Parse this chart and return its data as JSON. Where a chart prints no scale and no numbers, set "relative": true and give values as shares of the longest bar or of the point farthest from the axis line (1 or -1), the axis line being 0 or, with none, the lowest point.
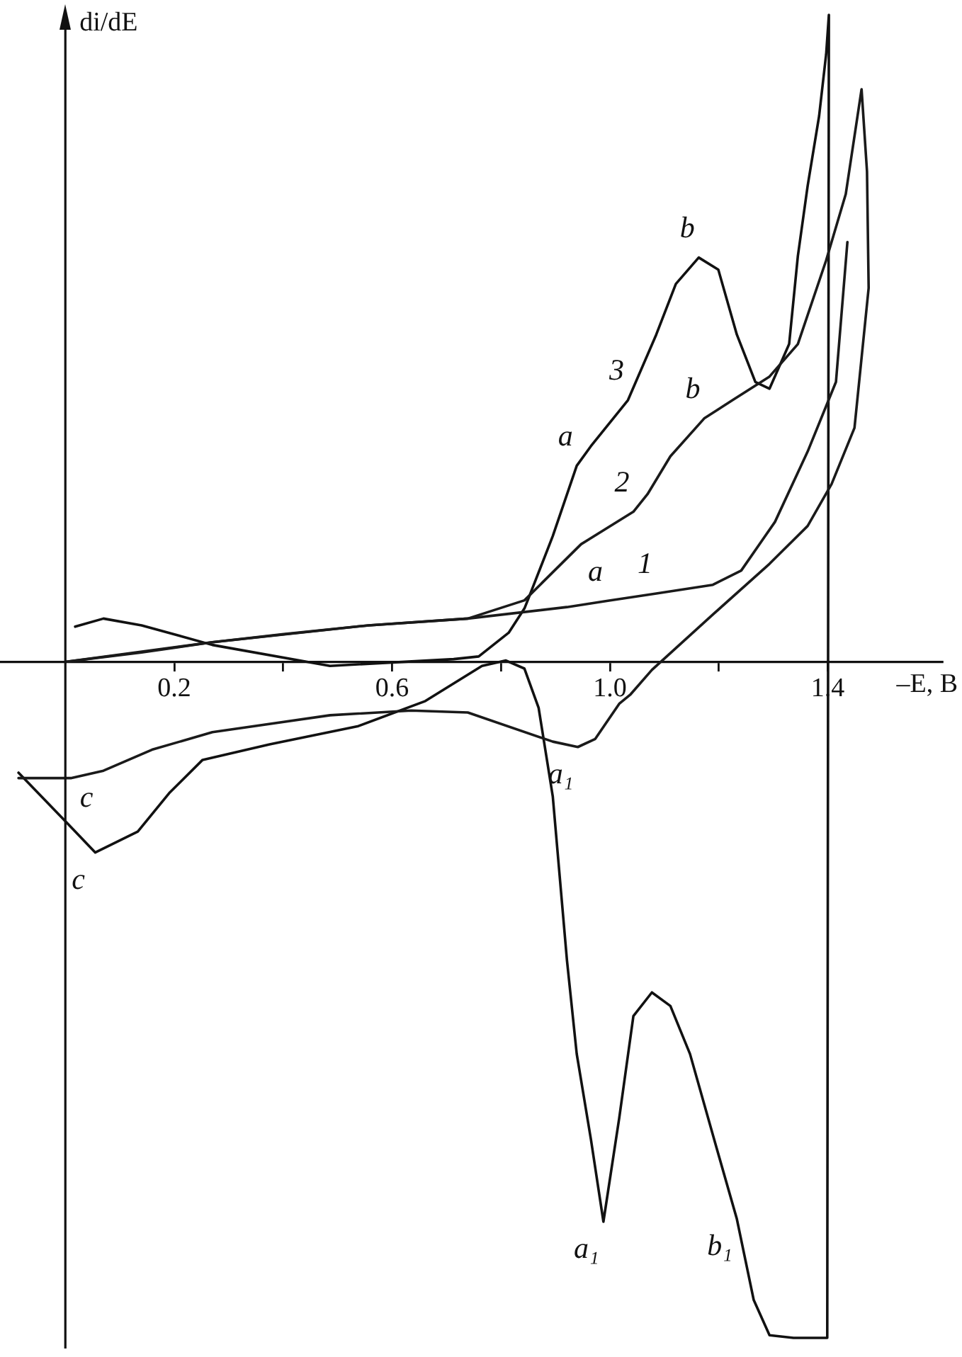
{
  "chart_data": {
    "type": "line",
    "relative": true,
    "xlabel": "–E, B",
    "ylabel": "di/dE",
    "xlim": [
      -0.12,
      1.61
    ],
    "xticks": [
      {
        "value": 0.2,
        "label": "0.2"
      },
      {
        "value": 0.4,
        "label": null
      },
      {
        "value": 0.6,
        "label": "0.6"
      },
      {
        "value": 0.8,
        "label": null
      },
      {
        "value": 1.0,
        "label": "1.0"
      },
      {
        "value": 1.2,
        "label": null
      },
      {
        "value": 1.4,
        "label": "1.4"
      }
    ],
    "tick_labels": "x",
    "grid": false,
    "legend": false,
    "marker": "none",
    "line_style": "solid",
    "series": [
      {
        "color": "#1a1a1a",
        "x": [
          0.0,
          0.14,
          0.27,
          0.401,
          0.557,
          0.739,
          0.921,
          0.994,
          1.085,
          1.189,
          1.241,
          1.303,
          1.363,
          1.415,
          1.436
        ],
        "values": [
          0,
          0.014,
          0.029,
          0.041,
          0.054,
          0.064,
          0.081,
          0.09,
          0.101,
          0.114,
          0.135,
          0.207,
          0.311,
          0.414,
          0.621
        ]
      },
      {
        "color": "#1a1a1a",
        "x": [
          0.0,
          0.27,
          0.557,
          0.739,
          0.843,
          0.947,
          1.043,
          1.069,
          1.111,
          1.173,
          1.225,
          1.293,
          1.345,
          1.397,
          1.433,
          1.462,
          1.472,
          1.475,
          1.449,
          1.407,
          1.363,
          1.293,
          1.189,
          1.077,
          1.038,
          1.017,
          0.973,
          0.941,
          0.895,
          0.739,
          0.635,
          0.486,
          0.27,
          0.159,
          0.07,
          0.01,
          -0.086
        ],
        "values": [
          0,
          0.029,
          0.054,
          0.064,
          0.091,
          0.174,
          0.222,
          0.248,
          0.304,
          0.36,
          0.387,
          0.422,
          0.47,
          0.594,
          0.692,
          0.847,
          0.725,
          0.553,
          0.346,
          0.263,
          0.201,
          0.145,
          0.07,
          -0.012,
          -0.048,
          -0.062,
          -0.114,
          -0.126,
          -0.118,
          -0.075,
          -0.072,
          -0.079,
          -0.104,
          -0.13,
          -0.161,
          -0.172,
          -0.172
        ]
      },
      {
        "color": "#111111",
        "x": [
          0.018,
          0.07,
          0.14,
          0.27,
          0.486,
          0.713,
          0.759,
          0.814,
          0.843,
          0.85,
          0.895,
          0.939,
          0.965,
          1.033,
          1.085,
          1.121,
          1.163,
          1.199,
          1.233,
          1.267,
          1.293,
          1.329,
          1.345,
          1.363,
          1.384,
          1.397,
          1.402,
          1.399,
          1.337,
          1.293,
          1.264,
          1.233,
          1.194,
          1.147,
          1.111,
          1.077,
          1.043,
          1.017,
          0.988,
          0.965,
          0.939,
          0.921,
          0.895,
          0.869,
          0.843,
          0.809,
          0.765,
          0.661,
          0.538,
          0.375,
          0.252,
          0.192,
          0.133,
          0.055,
          0.005,
          -0.086
        ],
        "values": [
          0.052,
          0.064,
          0.054,
          0.025,
          -0.006,
          0.004,
          0.008,
          0.043,
          0.079,
          0.093,
          0.186,
          0.29,
          0.319,
          0.387,
          0.484,
          0.559,
          0.598,
          0.58,
          0.484,
          0.414,
          0.404,
          0.47,
          0.6,
          0.704,
          0.807,
          0.899,
          0.957,
          -1,
          -1,
          -0.996,
          -0.944,
          -0.824,
          -0.714,
          -0.58,
          -0.509,
          -0.489,
          -0.524,
          -0.675,
          -0.828,
          -0.706,
          -0.58,
          -0.441,
          -0.199,
          -0.068,
          -0.01,
          0.002,
          -0.006,
          -0.058,
          -0.095,
          -0.122,
          -0.145,
          -0.193,
          -0.251,
          -0.282,
          -0.24,
          -0.164
        ]
      }
    ],
    "annotations": [
      {
        "text": "1",
        "x": 1.085,
        "y": 0.101
      },
      {
        "text": "a",
        "x": 0.994,
        "y": 0.09
      },
      {
        "text": "2",
        "x": 1.043,
        "y": 0.222
      },
      {
        "text": "b",
        "x": 1.173,
        "y": 0.36
      },
      {
        "text": "3",
        "x": 1.033,
        "y": 0.387
      },
      {
        "text": "a",
        "x": 0.939,
        "y": 0.29
      },
      {
        "text": "b",
        "x": 1.163,
        "y": 0.598
      },
      {
        "text": "a₁",
        "x": 0.941,
        "y": -0.126
      },
      {
        "text": "a₁",
        "x": 0.988,
        "y": -0.828
      },
      {
        "text": "b₁",
        "x": 1.233,
        "y": -0.824
      },
      {
        "text": "c",
        "x": 0.07,
        "y": -0.161
      },
      {
        "text": "c",
        "x": 0.055,
        "y": -0.282
      }
    ]
  }
}
